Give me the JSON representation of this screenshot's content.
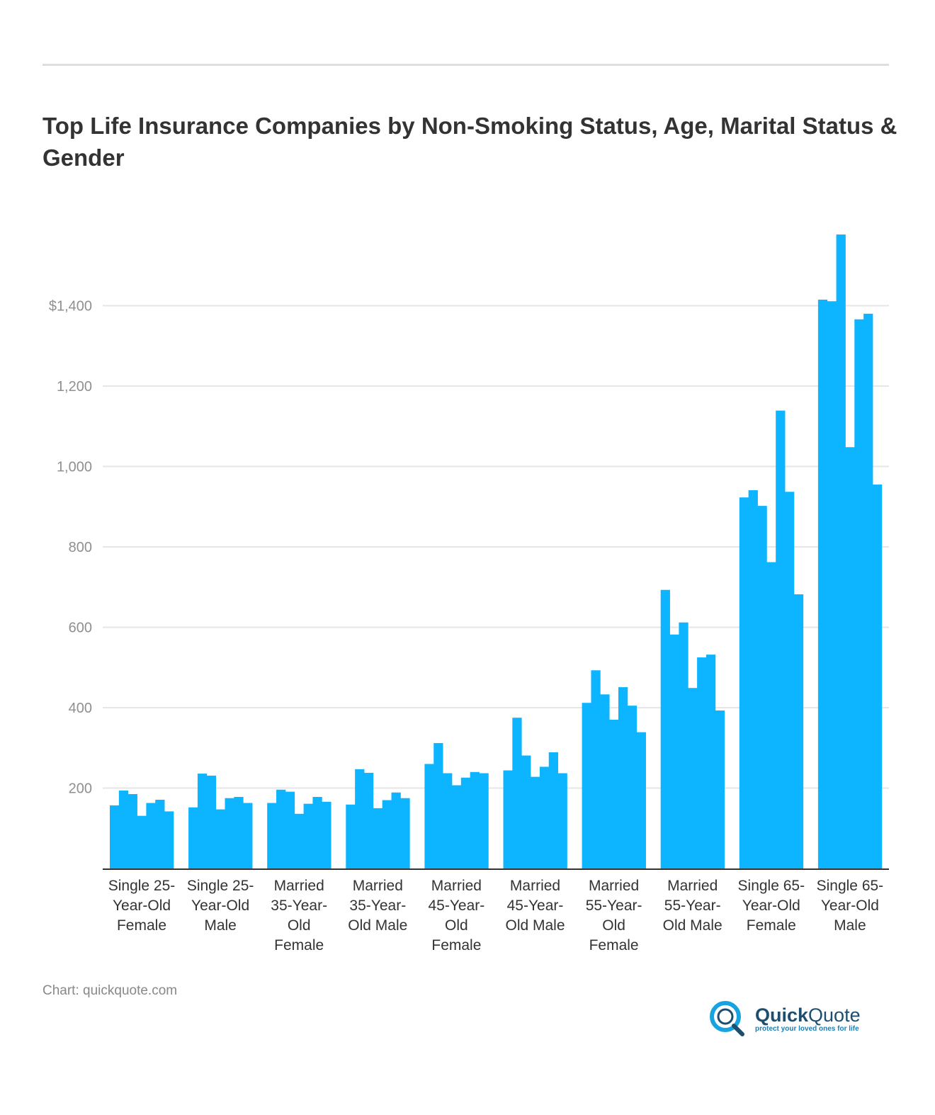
{
  "title": "Top Life Insurance Companies by Non-Smoking Status, Age, Marital Status & Gender",
  "source": "Chart: quickquote.com",
  "logo": {
    "name_bold": "Quick",
    "name_regular": "Quote",
    "tagline": "protect your loved ones for life"
  },
  "chart_data": {
    "type": "bar",
    "title": "Top Life Insurance Companies by Non-Smoking Status, Age, Marital Status & Gender",
    "xlabel": "",
    "ylabel": "",
    "ylim": [
      0,
      1600
    ],
    "grid": true,
    "yticks": [
      200,
      400,
      600,
      800,
      1000,
      1200,
      1400
    ],
    "ytick_labels": [
      "200",
      "400",
      "600",
      "800",
      "1,000",
      "1,200",
      "$1,400"
    ],
    "bar_color": "#0db4ff",
    "categories": [
      "Single 25-Year-Old Female",
      "Single 25-Year-Old Male",
      "Married 35-Year-Old Female",
      "Married 35-Year-Old Male",
      "Married 45-Year-Old Female",
      "Married 45-Year-Old Male",
      "Married 55-Year-Old Female",
      "Married 55-Year-Old Male",
      "Single 65-Year-Old Female",
      "Single 65-Year-Old Male"
    ],
    "groups": [
      [
        157,
        194,
        185,
        131,
        163,
        171,
        142
      ],
      [
        152,
        236,
        231,
        147,
        175,
        178,
        163
      ],
      [
        163,
        196,
        191,
        136,
        161,
        178,
        166
      ],
      [
        159,
        247,
        238,
        150,
        170,
        189,
        175
      ],
      [
        260,
        312,
        237,
        207,
        226,
        240,
        237
      ],
      [
        244,
        375,
        281,
        228,
        253,
        289,
        237
      ],
      [
        412,
        493,
        433,
        370,
        451,
        405,
        339
      ],
      [
        693,
        582,
        612,
        449,
        525,
        532,
        393
      ],
      [
        923,
        941,
        902,
        762,
        1139,
        937,
        682
      ],
      [
        1415,
        1411,
        1577,
        1048,
        1366,
        1380,
        955
      ]
    ]
  }
}
